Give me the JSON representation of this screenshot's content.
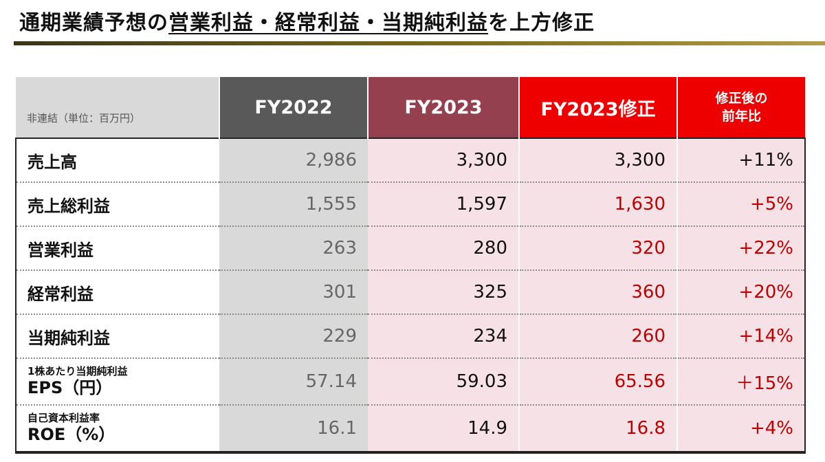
{
  "title": {
    "part1": "通期業績予想の",
    "part2": "営業利益・経常利益・当期純利益",
    "part3": "を上方修正"
  },
  "colors": {
    "gold_rule": "#7a6a1e",
    "fy2022_header": "#595959",
    "fy2023_header": "#94404f",
    "revision_header": "#ee0000",
    "highlight_text": "#c00000",
    "pink_cell": "#f6e2e6",
    "gray_cell": "#d9d9d9"
  },
  "table": {
    "unit_note": "非連結（単位：百万円）",
    "headers": {
      "fy2022": "FY2022",
      "fy2023": "FY2023",
      "fy2023_rev": "FY2023修正",
      "yoy_line1": "修正後の",
      "yoy_line2": "前年比"
    },
    "rows": [
      {
        "label": "売上高",
        "fy2022": "2,986",
        "fy2023": "3,300",
        "fy2023_rev": "3,300",
        "yoy": "+11%"
      },
      {
        "label": "売上総利益",
        "fy2022": "1,555",
        "fy2023": "1,597",
        "fy2023_rev": "1,630",
        "yoy": "+5%"
      },
      {
        "label": "営業利益",
        "fy2022": "263",
        "fy2023": "280",
        "fy2023_rev": "320",
        "yoy": "+22%"
      },
      {
        "label": "経常利益",
        "fy2022": "301",
        "fy2023": "325",
        "fy2023_rev": "360",
        "yoy": "+20%"
      },
      {
        "label": "当期純利益",
        "fy2022": "229",
        "fy2023": "234",
        "fy2023_rev": "260",
        "yoy": "+14%"
      },
      {
        "label_sub": "1株あたり当期純利益",
        "label": "EPS（円）",
        "fy2022": "57.14",
        "fy2023": "59.03",
        "fy2023_rev": "65.56",
        "yoy": "＋15%"
      },
      {
        "label_sub": "自己資本利益率",
        "label": "ROE（%）",
        "fy2022": "16.1",
        "fy2023": "14.9",
        "fy2023_rev": "16.8",
        "yoy": "+4%"
      }
    ]
  }
}
